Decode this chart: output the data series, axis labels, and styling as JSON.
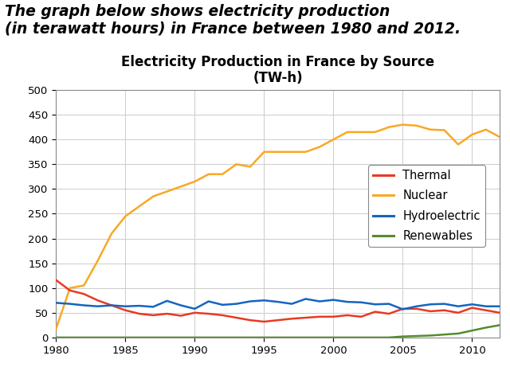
{
  "title_line1": "Electricity Production in France by Source",
  "title_line2": "(TW-h)",
  "header_text": "The graph below shows electricity production\n(in terawatt hours) in France between 1980 and 2012.",
  "years": [
    1980,
    1981,
    1982,
    1983,
    1984,
    1985,
    1986,
    1987,
    1988,
    1989,
    1990,
    1991,
    1992,
    1993,
    1994,
    1995,
    1996,
    1997,
    1998,
    1999,
    2000,
    2001,
    2002,
    2003,
    2004,
    2005,
    2006,
    2007,
    2008,
    2009,
    2010,
    2011,
    2012
  ],
  "thermal": [
    116,
    95,
    88,
    75,
    65,
    55,
    48,
    45,
    48,
    44,
    50,
    48,
    45,
    40,
    35,
    32,
    35,
    38,
    40,
    42,
    42,
    45,
    42,
    52,
    48,
    58,
    58,
    53,
    55,
    50,
    60,
    55,
    50
  ],
  "nuclear": [
    18,
    100,
    105,
    155,
    210,
    245,
    265,
    285,
    295,
    305,
    315,
    330,
    330,
    350,
    345,
    375,
    375,
    375,
    375,
    385,
    400,
    415,
    415,
    415,
    425,
    430,
    428,
    420,
    419,
    390,
    410,
    420,
    405
  ],
  "hydro": [
    70,
    68,
    65,
    63,
    65,
    63,
    64,
    62,
    74,
    65,
    58,
    73,
    66,
    68,
    73,
    75,
    72,
    68,
    78,
    73,
    76,
    72,
    71,
    67,
    68,
    57,
    63,
    67,
    68,
    63,
    67,
    63,
    63
  ],
  "renewables": [
    0,
    0,
    0,
    0,
    0,
    0,
    0,
    0,
    0,
    0,
    0,
    0,
    0,
    0,
    0,
    0,
    0,
    0,
    0,
    0,
    0,
    0,
    0,
    0,
    0,
    2,
    3,
    4,
    6,
    8,
    14,
    20,
    25
  ],
  "thermal_color": "#e83a23",
  "nuclear_color": "#f9a825",
  "hydro_color": "#1565c0",
  "renewables_color": "#558b2f",
  "ylim": [
    0,
    500
  ],
  "yticks": [
    0,
    50,
    100,
    150,
    200,
    250,
    300,
    350,
    400,
    450,
    500
  ],
  "xlim": [
    1980,
    2012
  ],
  "xticks": [
    1980,
    1985,
    1990,
    1995,
    2000,
    2005,
    2010
  ],
  "grid_color": "#cccccc",
  "bg_color": "#ffffff",
  "plot_bg_color": "#ffffff",
  "legend_labels": [
    "Thermal",
    "Nuclear",
    "Hydroelectric",
    "Renewables"
  ],
  "header_fontsize": 13.5,
  "title_fontsize": 12,
  "tick_fontsize": 9.5,
  "legend_fontsize": 10.5
}
